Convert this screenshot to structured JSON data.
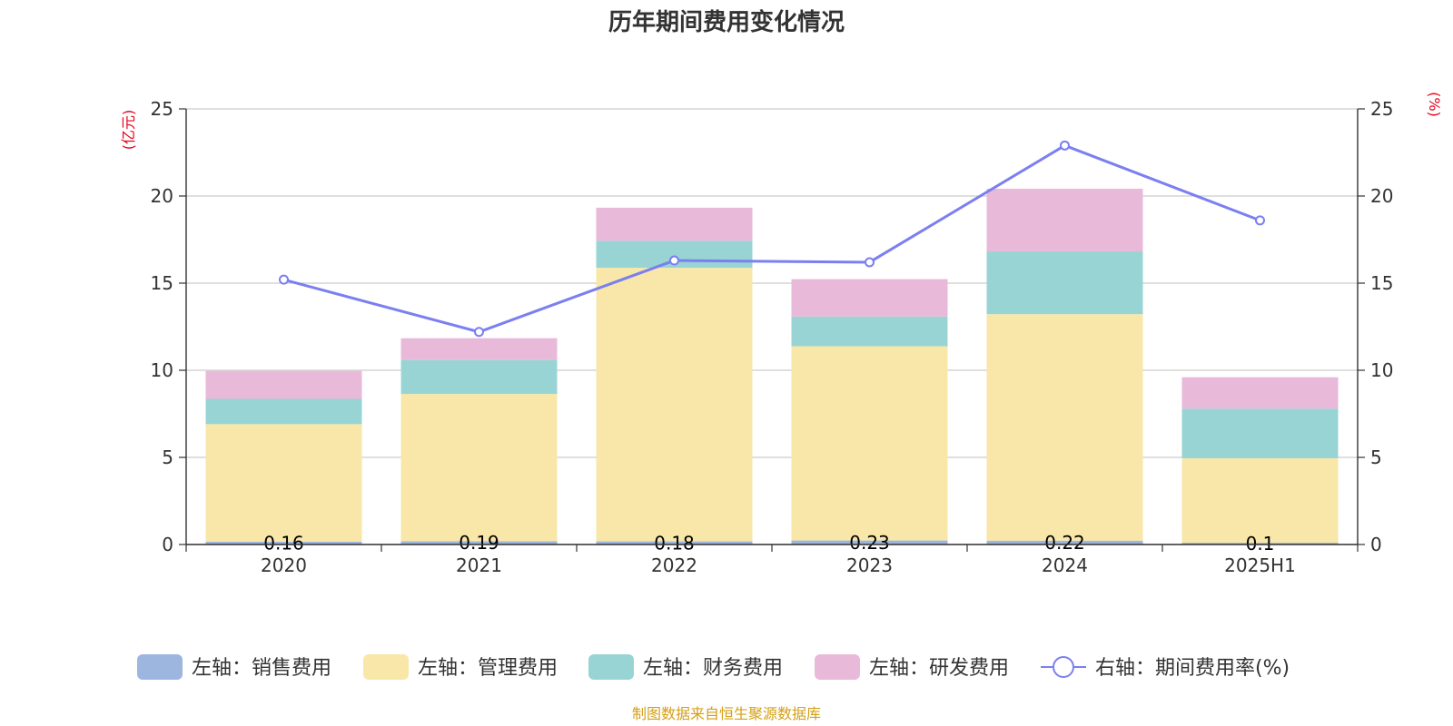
{
  "colors": {
    "sales": "#9db6e0",
    "admin": "#f8e7a8",
    "finance": "#98d4d4",
    "rd": "#e8b9d9",
    "rate": "#7b7ff0",
    "grid": "#cccccc",
    "axis": "#333333",
    "unit": "#e6001a",
    "source": "#d4a017"
  },
  "source": "制图数据来自恒生聚源数据库",
  "chart_data": {
    "type": "bar",
    "title": "历年期间费用变化情况",
    "categories": [
      "2020",
      "2021",
      "2022",
      "2023",
      "2024",
      "2025H1"
    ],
    "y_left": {
      "unit": "(亿元)",
      "range": [
        0,
        25
      ],
      "ticks": [
        "0",
        "5",
        "10",
        "15",
        "20",
        "25"
      ]
    },
    "y_right": {
      "unit": "(%)",
      "range": [
        0,
        25
      ],
      "ticks": [
        "0",
        "5",
        "10",
        "15",
        "20",
        "25"
      ]
    },
    "grid": true,
    "legend_position": "bottom",
    "stacked": true,
    "series": [
      {
        "key": "sales",
        "name": "左轴：销售费用",
        "axis": "left",
        "type": "bar",
        "values": [
          0.16,
          0.19,
          0.18,
          0.23,
          0.22,
          0.1
        ],
        "labels": [
          "0.16",
          "0.19",
          "0.18",
          "0.23",
          "0.22",
          "0.1"
        ]
      },
      {
        "key": "admin",
        "name": "左轴：管理费用",
        "axis": "left",
        "type": "bar",
        "values": [
          6.75,
          8.45,
          15.7,
          11.15,
          13.0,
          4.85
        ]
      },
      {
        "key": "finance",
        "name": "左轴：财务费用",
        "axis": "left",
        "type": "bar",
        "values": [
          1.45,
          1.95,
          1.55,
          1.7,
          3.6,
          2.85
        ]
      },
      {
        "key": "rd",
        "name": "左轴：研发费用",
        "axis": "left",
        "type": "bar",
        "values": [
          1.6,
          1.25,
          1.9,
          2.15,
          3.6,
          1.8
        ]
      },
      {
        "key": "rate",
        "name": "右轴：期间费用率(%)",
        "axis": "right",
        "type": "line",
        "values": [
          15.2,
          12.2,
          16.3,
          16.2,
          22.9,
          18.6
        ]
      }
    ]
  }
}
